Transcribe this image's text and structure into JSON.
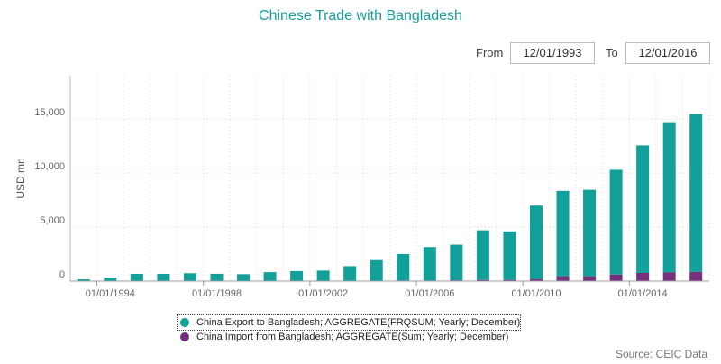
{
  "header": {
    "title": "Chinese Trade with Bangladesh",
    "from_label": "From",
    "from_value": "12/01/1993",
    "to_label": "To",
    "to_value": "12/01/2016"
  },
  "source": "Source: CEIC Data",
  "colors": {
    "export": "#12a19a",
    "import": "#77307e",
    "title": "#13a09a"
  },
  "chart_data": {
    "type": "bar",
    "stacked": true,
    "title": "Chinese Trade with Bangladesh",
    "ylabel": "USD mn",
    "ylim": [
      0,
      19000
    ],
    "yticks": [
      0,
      5000,
      10000,
      15000
    ],
    "ytick_labels": [
      "0",
      "5,000",
      "10,000",
      "15,000"
    ],
    "grid": true,
    "legend_position": "bottom",
    "x_tick_labels": [
      "01/01/1994",
      "01/01/1998",
      "01/01/2002",
      "01/01/2006",
      "01/01/2010",
      "01/01/2014"
    ],
    "categories": [
      "1993",
      "1994",
      "1995",
      "1996",
      "1997",
      "1998",
      "1999",
      "2000",
      "2001",
      "2002",
      "2003",
      "2004",
      "2005",
      "2006",
      "2007",
      "2008",
      "2009",
      "2010",
      "2011",
      "2012",
      "2013",
      "2014",
      "2015",
      "2016"
    ],
    "series": [
      {
        "name": "China Export to Bangladesh; AGGREGATE(FRQSUM; Yearly; December)",
        "values": [
          150,
          300,
          650,
          650,
          700,
          650,
          620,
          800,
          900,
          950,
          1350,
          1900,
          2450,
          3100,
          3300,
          4600,
          4500,
          6800,
          7900,
          8000,
          9700,
          11800,
          13900,
          14600
        ]
      },
      {
        "name": "China Import from Bangladesh; AGGREGATE(Sum; Yearly; December)",
        "values": [
          10,
          15,
          20,
          20,
          25,
          25,
          20,
          25,
          25,
          20,
          30,
          40,
          55,
          50,
          70,
          100,
          100,
          180,
          450,
          450,
          600,
          750,
          800,
          850
        ]
      }
    ]
  }
}
